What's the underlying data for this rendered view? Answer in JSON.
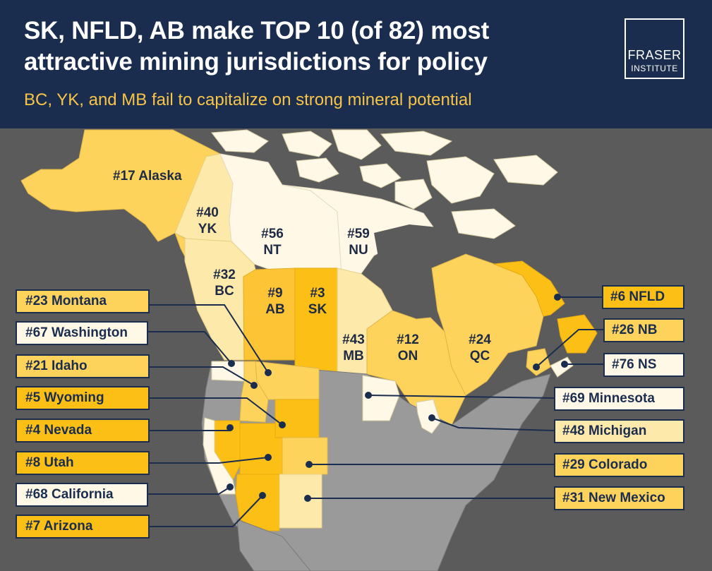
{
  "header": {
    "title": "SK, NFLD, AB make TOP 10 (of 82) most attractive mining jurisdictions for policy",
    "subtitle": "BC, YK, and MB fail to capitalize on strong mineral potential",
    "logo_line1": "FRASER",
    "logo_line2": "INSTITUTE"
  },
  "colors": {
    "header_bg": "#1b2d4f",
    "subtitle": "#f6c548",
    "top_tier": "#fbbf16",
    "mid_tier": "#fdd35c",
    "low_tier": "#fde9a9",
    "bottom_tier": "#fff8e6",
    "background": "#5b5b5b",
    "unranked_land": "#999999"
  },
  "map_labels": {
    "alaska": "#17 Alaska",
    "yk_rank": "#40",
    "yk": "YK",
    "nt_rank": "#56",
    "nt": "NT",
    "nu_rank": "#59",
    "nu": "NU",
    "bc_rank": "#32",
    "bc": "BC",
    "ab_rank": "#9",
    "ab": "AB",
    "sk_rank": "#3",
    "sk": "SK",
    "mb_rank": "#43",
    "mb": "MB",
    "on_rank": "#12",
    "on": "ON",
    "qc_rank": "#24",
    "qc": "QC"
  },
  "left_callouts": [
    {
      "label": "#23 Montana",
      "tier": "mid"
    },
    {
      "label": "#67 Washington",
      "tier": "bottom"
    },
    {
      "label": "#21 Idaho",
      "tier": "mid"
    },
    {
      "label": "#5 Wyoming",
      "tier": "top"
    },
    {
      "label": "#4 Nevada",
      "tier": "top"
    },
    {
      "label": "#8 Utah",
      "tier": "top"
    },
    {
      "label": "#68 California",
      "tier": "bottom"
    },
    {
      "label": "#7 Arizona",
      "tier": "top"
    }
  ],
  "right_callouts": [
    {
      "label": "#6 NFLD",
      "tier": "top"
    },
    {
      "label": "#26 NB",
      "tier": "mid"
    },
    {
      "label": "#76 NS",
      "tier": "bottom"
    },
    {
      "label": "#69 Minnesota",
      "tier": "bottom"
    },
    {
      "label": "#48 Michigan",
      "tier": "low"
    },
    {
      "label": "#29 Colorado",
      "tier": "mid"
    },
    {
      "label": "#31 New Mexico",
      "tier": "mid"
    }
  ]
}
